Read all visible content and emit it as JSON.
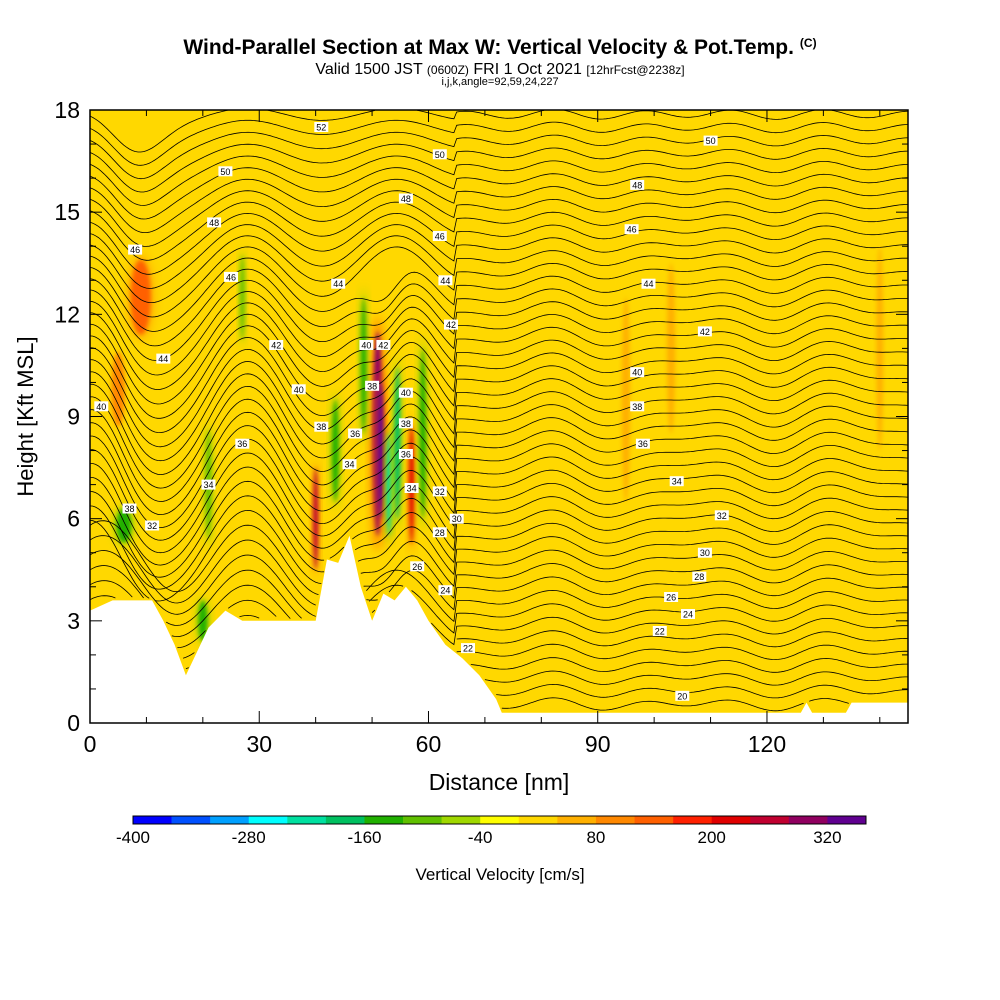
{
  "header": {
    "title": "Wind-Parallel Section at Max W: Vertical Velocity & Pot.Temp.",
    "copyright": "(C)",
    "valid_prefix": "Valid 1500 JST",
    "valid_utc": "(0600Z)",
    "valid_date": "FRI 1 Oct 2021",
    "forecast": "[12hrFcst@2238z]",
    "indices": "i,j,k,angle=92,59,24,227"
  },
  "colorbar": {
    "label": "Vertical Velocity [cm/s]",
    "tick_labels": [
      "-400",
      "-280",
      "-160",
      "-40",
      "80",
      "200",
      "320"
    ],
    "colors": [
      "#0000ff",
      "#0050ff",
      "#00a0ff",
      "#00ffff",
      "#00e0a0",
      "#00c060",
      "#20b000",
      "#60c000",
      "#a0d800",
      "#ffff00",
      "#ffd800",
      "#ffb000",
      "#ff8800",
      "#ff6000",
      "#ff2000",
      "#e00000",
      "#c00030",
      "#900060",
      "#600090"
    ]
  },
  "chart_data": {
    "type": "heatmap",
    "xlabel": "Distance [nm]",
    "ylabel": "Height [Kft MSL]",
    "xlim": [
      0,
      145
    ],
    "ylim": [
      0,
      18
    ],
    "x_ticks": [
      "0",
      "30",
      "60",
      "90",
      "120"
    ],
    "y_ticks": [
      "0",
      "3",
      "6",
      "9",
      "12",
      "15",
      "18"
    ],
    "field": "Vertical Velocity [cm/s]",
    "field_range": [
      -400,
      360
    ],
    "contour_field": "Potential Temperature",
    "terrain": [
      [
        0,
        3.3
      ],
      [
        4,
        3.6
      ],
      [
        11,
        3.6
      ],
      [
        13,
        3.0
      ],
      [
        15,
        2.3
      ],
      [
        17,
        1.4
      ],
      [
        19,
        2.1
      ],
      [
        21,
        2.8
      ],
      [
        24,
        3.3
      ],
      [
        27,
        3.0
      ],
      [
        40,
        3.0
      ],
      [
        42,
        4.8
      ],
      [
        44,
        4.7
      ],
      [
        46,
        5.5
      ],
      [
        48,
        4.0
      ],
      [
        50,
        3.0
      ],
      [
        52,
        3.8
      ],
      [
        54,
        3.6
      ],
      [
        56,
        4.0
      ],
      [
        58,
        3.6
      ],
      [
        60,
        3.0
      ],
      [
        63,
        2.3
      ],
      [
        66,
        1.9
      ],
      [
        69,
        1.4
      ],
      [
        72,
        0.7
      ],
      [
        73,
        0.3
      ],
      [
        80,
        0.3
      ],
      [
        100,
        0.3
      ],
      [
        112,
        0.3
      ],
      [
        126,
        0.3
      ],
      [
        127,
        0.6
      ],
      [
        128,
        0.3
      ],
      [
        134,
        0.3
      ],
      [
        135,
        0.6
      ],
      [
        145,
        0.6
      ],
      [
        145,
        1.3
      ]
    ],
    "updrafts": [
      {
        "x": 5,
        "y": 9.8,
        "w": 2.4,
        "h": 2.2,
        "value": 80
      },
      {
        "x": 9,
        "y": 12.5,
        "w": 3.6,
        "h": 2.2,
        "value": 120
      },
      {
        "x": 40,
        "y": 6.0,
        "w": 0.9,
        "h": 3.0,
        "value": 260
      },
      {
        "x": 51,
        "y": 8.5,
        "w": 1.7,
        "h": 6.0,
        "value": 300
      },
      {
        "x": 51.5,
        "y": 8.0,
        "w": 1.0,
        "h": 4.0,
        "value": 340
      },
      {
        "x": 57,
        "y": 7.0,
        "w": 0.9,
        "h": 3.5,
        "value": 200
      },
      {
        "x": 95,
        "y": 9.5,
        "w": 1.5,
        "h": 6.0,
        "value": 70
      },
      {
        "x": 103,
        "y": 11.0,
        "w": 1.5,
        "h": 5.0,
        "value": 60
      },
      {
        "x": 140,
        "y": 11.0,
        "w": 1.2,
        "h": 6.0,
        "value": 70
      }
    ],
    "downdrafts": [
      {
        "x": 6,
        "y": 5.8,
        "w": 2.6,
        "h": 1.0,
        "value": -150
      },
      {
        "x": 20,
        "y": 3.0,
        "w": 1.6,
        "h": 1.2,
        "value": -160
      },
      {
        "x": 21,
        "y": 7.0,
        "w": 1.0,
        "h": 3.2,
        "value": -100
      },
      {
        "x": 27,
        "y": 12.5,
        "w": 0.8,
        "h": 2.5,
        "value": -90
      },
      {
        "x": 43.5,
        "y": 8.0,
        "w": 1.2,
        "h": 3.0,
        "value": -140
      },
      {
        "x": 48.5,
        "y": 10.5,
        "w": 1.0,
        "h": 4.0,
        "value": -130
      },
      {
        "x": 53,
        "y": 7.0,
        "w": 0.9,
        "h": 3.0,
        "value": -230
      },
      {
        "x": 54.5,
        "y": 8.2,
        "w": 1.1,
        "h": 4.5,
        "value": -170
      },
      {
        "x": 59,
        "y": 8.5,
        "w": 1.1,
        "h": 5.0,
        "value": -160
      }
    ],
    "contour_levels": [
      {
        "label": "20",
        "x": 105,
        "y": 0.8
      },
      {
        "label": "22",
        "x": 67,
        "y": 2.2
      },
      {
        "label": "22",
        "x": 101,
        "y": 2.7
      },
      {
        "label": "24",
        "x": 63,
        "y": 3.9
      },
      {
        "label": "24",
        "x": 106,
        "y": 3.2
      },
      {
        "label": "26",
        "x": 103,
        "y": 3.7
      },
      {
        "label": "26",
        "x": 58,
        "y": 4.6
      },
      {
        "label": "28",
        "x": 62,
        "y": 5.6
      },
      {
        "label": "28",
        "x": 108,
        "y": 4.3
      },
      {
        "label": "30",
        "x": 65,
        "y": 6.0
      },
      {
        "label": "30",
        "x": 109,
        "y": 5.0
      },
      {
        "label": "32",
        "x": 11,
        "y": 5.8
      },
      {
        "label": "32",
        "x": 62,
        "y": 6.8
      },
      {
        "label": "32",
        "x": 112,
        "y": 6.1
      },
      {
        "label": "34",
        "x": 21,
        "y": 7.0
      },
      {
        "label": "34",
        "x": 46,
        "y": 7.6
      },
      {
        "label": "34",
        "x": 57,
        "y": 6.9
      },
      {
        "label": "34",
        "x": 104,
        "y": 7.1
      },
      {
        "label": "36",
        "x": 27,
        "y": 8.2
      },
      {
        "label": "36",
        "x": 47,
        "y": 8.5
      },
      {
        "label": "36",
        "x": 56,
        "y": 7.9
      },
      {
        "label": "36",
        "x": 98,
        "y": 8.2
      },
      {
        "label": "38",
        "x": 7,
        "y": 6.3
      },
      {
        "label": "38",
        "x": 41,
        "y": 8.7
      },
      {
        "label": "38",
        "x": 50,
        "y": 9.9
      },
      {
        "label": "38",
        "x": 56,
        "y": 8.8
      },
      {
        "label": "38",
        "x": 97,
        "y": 9.3
      },
      {
        "label": "40",
        "x": 2,
        "y": 9.3
      },
      {
        "label": "40",
        "x": 37,
        "y": 9.8
      },
      {
        "label": "40",
        "x": 49,
        "y": 11.1
      },
      {
        "label": "40",
        "x": 56,
        "y": 9.7
      },
      {
        "label": "40",
        "x": 97,
        "y": 10.3
      },
      {
        "label": "42",
        "x": 33,
        "y": 11.1
      },
      {
        "label": "42",
        "x": 52,
        "y": 11.1
      },
      {
        "label": "42",
        "x": 64,
        "y": 11.7
      },
      {
        "label": "42",
        "x": 109,
        "y": 11.5
      },
      {
        "label": "44",
        "x": 13,
        "y": 10.7
      },
      {
        "label": "44",
        "x": 44,
        "y": 12.9
      },
      {
        "label": "44",
        "x": 63,
        "y": 13.0
      },
      {
        "label": "44",
        "x": 99,
        "y": 12.9
      },
      {
        "label": "46",
        "x": 8,
        "y": 13.9
      },
      {
        "label": "46",
        "x": 25,
        "y": 13.1
      },
      {
        "label": "46",
        "x": 62,
        "y": 14.3
      },
      {
        "label": "46",
        "x": 96,
        "y": 14.5
      },
      {
        "label": "48",
        "x": 22,
        "y": 14.7
      },
      {
        "label": "48",
        "x": 56,
        "y": 15.4
      },
      {
        "label": "48",
        "x": 97,
        "y": 15.8
      },
      {
        "label": "50",
        "x": 24,
        "y": 16.2
      },
      {
        "label": "50",
        "x": 62,
        "y": 16.7
      },
      {
        "label": "50",
        "x": 110,
        "y": 17.1
      },
      {
        "label": "52",
        "x": 41,
        "y": 17.5
      }
    ]
  }
}
